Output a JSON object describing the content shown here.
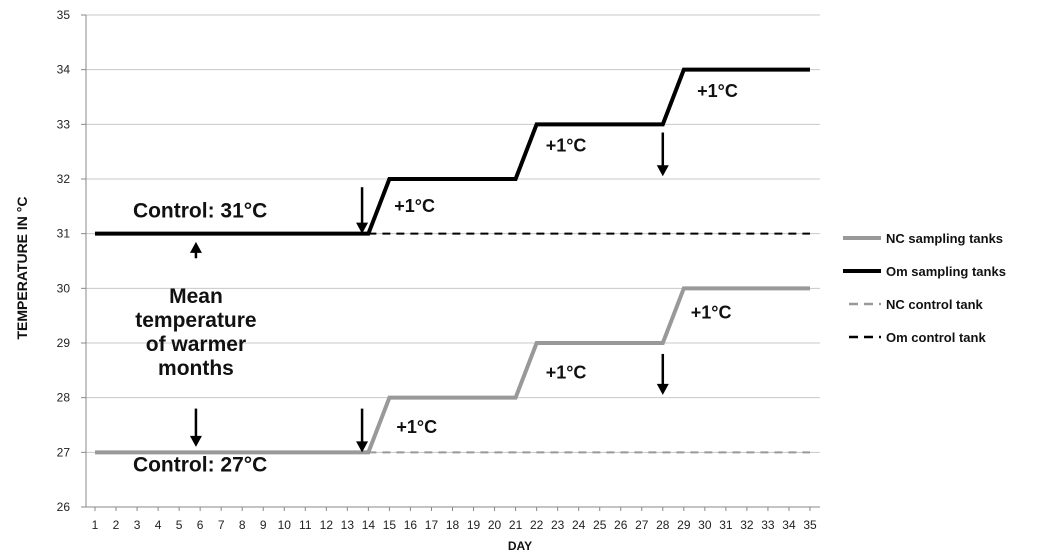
{
  "chart_data": {
    "type": "line",
    "title": "",
    "xlabel": "DAY",
    "ylabel": "TEMPERATURE IN °C",
    "x": [
      1,
      2,
      3,
      4,
      5,
      6,
      7,
      8,
      9,
      10,
      11,
      12,
      13,
      14,
      15,
      16,
      17,
      18,
      19,
      20,
      21,
      22,
      23,
      24,
      25,
      26,
      27,
      28,
      29,
      30,
      31,
      32,
      33,
      34,
      35
    ],
    "xlim": [
      1,
      35
    ],
    "ylim": [
      26,
      35
    ],
    "yticks": [
      26,
      27,
      28,
      29,
      30,
      31,
      32,
      33,
      34,
      35
    ],
    "grid": "horizontal",
    "legend_position": "right",
    "series": [
      {
        "name": "NC sampling tanks",
        "color": "#999999",
        "style": "solid",
        "points": [
          [
            1,
            27
          ],
          [
            14,
            27
          ],
          [
            15,
            28
          ],
          [
            21,
            28
          ],
          [
            22,
            29
          ],
          [
            28,
            29
          ],
          [
            29,
            30
          ],
          [
            35,
            30
          ]
        ]
      },
      {
        "name": "Om sampling tanks",
        "color": "#000000",
        "style": "solid",
        "points": [
          [
            1,
            31
          ],
          [
            14,
            31
          ],
          [
            15,
            32
          ],
          [
            21,
            32
          ],
          [
            22,
            33
          ],
          [
            28,
            33
          ],
          [
            29,
            34
          ],
          [
            35,
            34
          ]
        ]
      },
      {
        "name": "NC control tank",
        "color": "#999999",
        "style": "dashed",
        "points": [
          [
            14,
            27
          ],
          [
            35,
            27
          ]
        ]
      },
      {
        "name": "Om control tank",
        "color": "#000000",
        "style": "dashed",
        "points": [
          [
            14,
            31
          ],
          [
            35,
            31
          ]
        ]
      }
    ],
    "annotations": [
      {
        "text": "Control: 31°C",
        "x": 6,
        "y": 31.3,
        "size": "big"
      },
      {
        "text": "Control: 27°C",
        "x": 6,
        "y": 26.65,
        "size": "big"
      },
      {
        "text": "+1°C",
        "x": 16.2,
        "y": 31.4,
        "size": "step"
      },
      {
        "text": "+1°C",
        "x": 23.4,
        "y": 32.5,
        "size": "step"
      },
      {
        "text": "+1°C",
        "x": 30.6,
        "y": 33.5,
        "size": "step"
      },
      {
        "text": "+1°C",
        "x": 16.3,
        "y": 27.35,
        "size": "step"
      },
      {
        "text": "+1°C",
        "x": 23.4,
        "y": 28.35,
        "size": "step"
      },
      {
        "text": "+1°C",
        "x": 30.3,
        "y": 29.45,
        "size": "step"
      }
    ],
    "mean_note": {
      "lines": [
        "Mean",
        "temperature",
        "of warmer",
        "months"
      ],
      "x": 5.8
    },
    "arrows": [
      {
        "x": 13.7,
        "y_from": 31.85,
        "y_to": 31.0
      },
      {
        "x": 28,
        "y_from": 32.85,
        "y_to": 32.05
      },
      {
        "x": 13.7,
        "y_from": 27.8,
        "y_to": 27.0
      },
      {
        "x": 28,
        "y_from": 28.8,
        "y_to": 28.05
      },
      {
        "x": 5.8,
        "y_from": 30.55,
        "y_to": 30.85
      },
      {
        "x": 5.8,
        "y_from": 27.8,
        "y_to": 27.1
      }
    ]
  }
}
